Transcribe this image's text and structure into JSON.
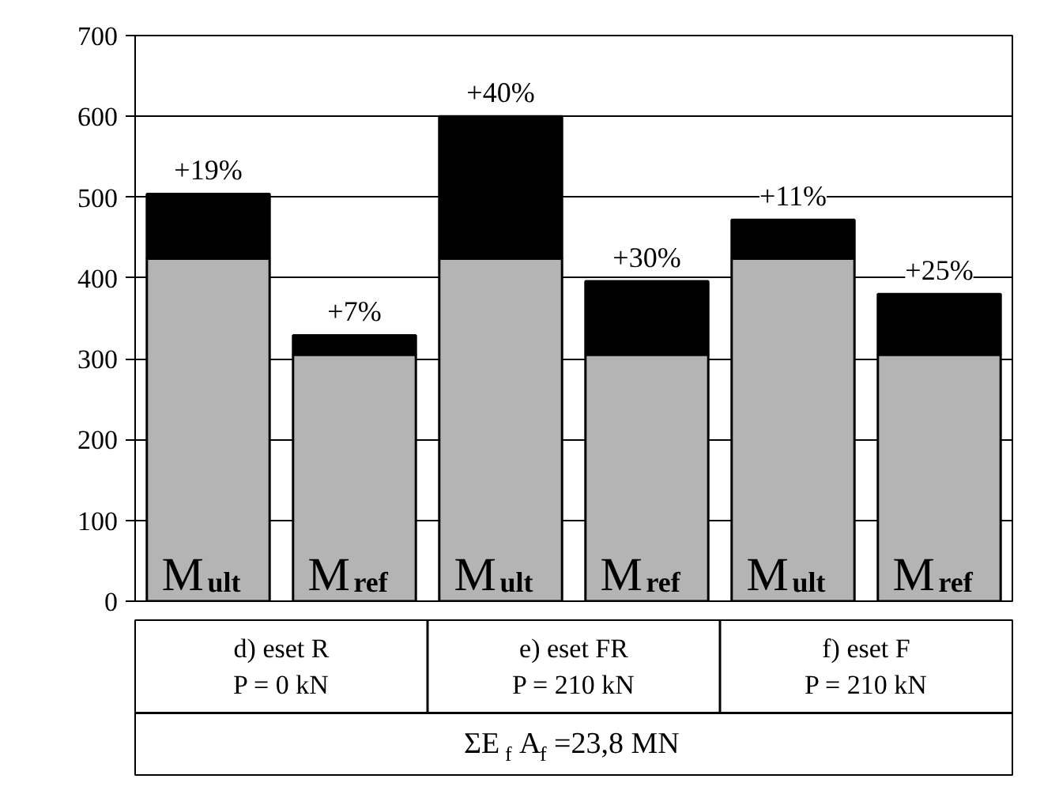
{
  "chart_data": {
    "type": "bar",
    "stacked": true,
    "categories": [
      "M$_{ult}$",
      "M$_{ref}$",
      "M$_{ult}$",
      "M$_{ref}$",
      "M$_{ult}$",
      "M$_{ref}$"
    ],
    "series": [
      {
        "color": "#b4b4b4",
        "values": [
          424,
          305,
          424,
          305,
          424,
          305
        ]
      },
      {
        "color": "#000000",
        "values": [
          80,
          24,
          176,
          91,
          48,
          75
        ]
      }
    ],
    "annotations": [
      "+19%",
      "+7%",
      "+40%",
      "+30%",
      "+11%",
      "+25%",
      "d) eset R\nP = 0 kN",
      "e) eset FR\nP = 210 kN",
      "f) eset F\nP = 210 kN"
    ],
    "xlabel": "ΣE$_{f}$A$_{f}$=23,8 MN",
    "ylim": [
      0,
      700
    ],
    "yticks": [
      0,
      100,
      200,
      300,
      400,
      500,
      600,
      700
    ],
    "grid": "y"
  }
}
